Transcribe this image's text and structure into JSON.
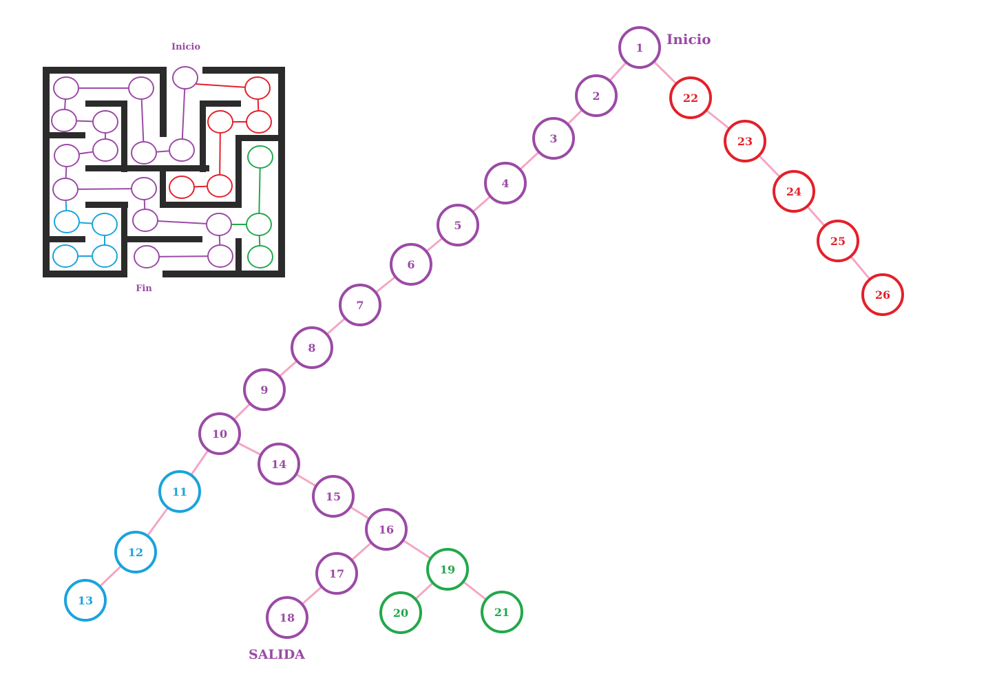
{
  "colors": {
    "purple": "#9b4aa6",
    "red": "#e3202a",
    "blue": "#1aa3dc",
    "green": "#22a84a",
    "edge": "#f4a6c4",
    "wall": "#2b2b2b"
  },
  "maze": {
    "start_label": "Inicio",
    "end_label": "Fin"
  },
  "tree": {
    "start_label": "Inicio",
    "exit_label": "SALIDA",
    "nodes": [
      {
        "id": "1",
        "color": "purple"
      },
      {
        "id": "2",
        "color": "purple"
      },
      {
        "id": "3",
        "color": "purple"
      },
      {
        "id": "4",
        "color": "purple"
      },
      {
        "id": "5",
        "color": "purple"
      },
      {
        "id": "6",
        "color": "purple"
      },
      {
        "id": "7",
        "color": "purple"
      },
      {
        "id": "8",
        "color": "purple"
      },
      {
        "id": "9",
        "color": "purple"
      },
      {
        "id": "10",
        "color": "purple"
      },
      {
        "id": "11",
        "color": "blue"
      },
      {
        "id": "12",
        "color": "blue"
      },
      {
        "id": "13",
        "color": "blue"
      },
      {
        "id": "14",
        "color": "purple"
      },
      {
        "id": "15",
        "color": "purple"
      },
      {
        "id": "16",
        "color": "purple"
      },
      {
        "id": "17",
        "color": "purple"
      },
      {
        "id": "18",
        "color": "purple"
      },
      {
        "id": "19",
        "color": "green"
      },
      {
        "id": "20",
        "color": "green"
      },
      {
        "id": "21",
        "color": "green"
      },
      {
        "id": "22",
        "color": "red"
      },
      {
        "id": "23",
        "color": "red"
      },
      {
        "id": "24",
        "color": "red"
      },
      {
        "id": "25",
        "color": "red"
      },
      {
        "id": "26",
        "color": "red"
      }
    ],
    "edges": [
      [
        "1",
        "2"
      ],
      [
        "2",
        "3"
      ],
      [
        "3",
        "4"
      ],
      [
        "4",
        "5"
      ],
      [
        "5",
        "6"
      ],
      [
        "6",
        "7"
      ],
      [
        "7",
        "8"
      ],
      [
        "8",
        "9"
      ],
      [
        "9",
        "10"
      ],
      [
        "10",
        "11"
      ],
      [
        "11",
        "12"
      ],
      [
        "12",
        "13"
      ],
      [
        "10",
        "14"
      ],
      [
        "14",
        "15"
      ],
      [
        "15",
        "16"
      ],
      [
        "16",
        "17"
      ],
      [
        "17",
        "18"
      ],
      [
        "16",
        "19"
      ],
      [
        "19",
        "20"
      ],
      [
        "19",
        "21"
      ],
      [
        "1",
        "22"
      ],
      [
        "22",
        "23"
      ],
      [
        "23",
        "24"
      ],
      [
        "24",
        "25"
      ],
      [
        "25",
        "26"
      ]
    ]
  }
}
